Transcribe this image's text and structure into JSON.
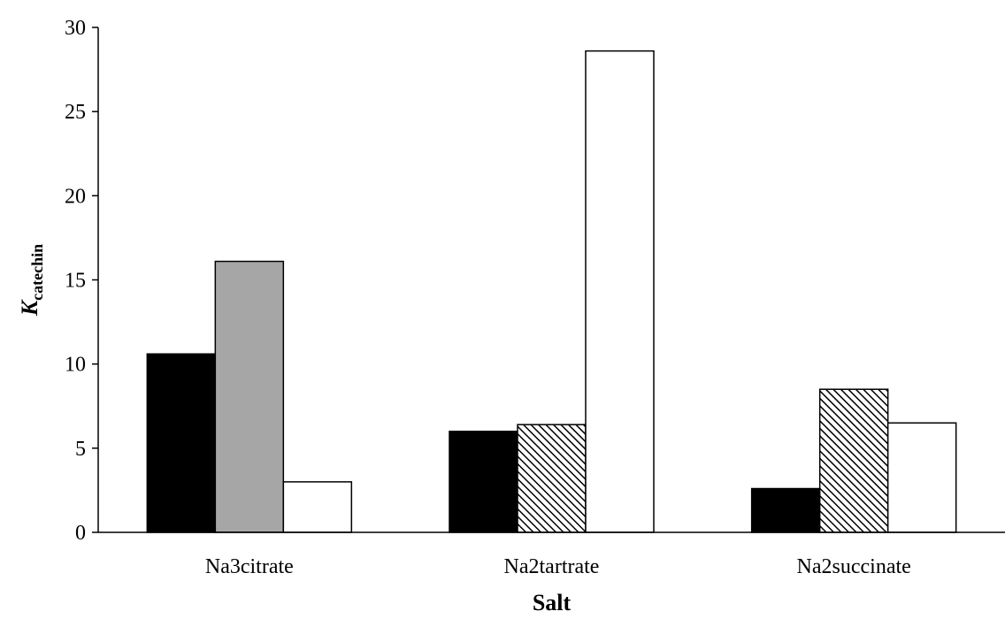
{
  "chart_data": {
    "type": "bar",
    "xlabel": "Salt",
    "ylabel_main": "K",
    "ylabel_sub": "catechin",
    "ylim": [
      0,
      30
    ],
    "yticks": [
      "0",
      "5",
      "10",
      "15",
      "20",
      "25",
      "30"
    ],
    "grid": false,
    "categories": [
      "Na3citrate",
      "Na2tartrate",
      "Na2succinate"
    ],
    "bars": [
      [
        {
          "value": 10.6,
          "fill": "solid-black"
        },
        {
          "value": 16.1,
          "fill": "solid-gray"
        },
        {
          "value": 3.0,
          "fill": "white"
        }
      ],
      [
        {
          "value": 6.0,
          "fill": "solid-black"
        },
        {
          "value": 6.4,
          "fill": "hatched"
        },
        {
          "value": 28.6,
          "fill": "white"
        }
      ],
      [
        {
          "value": 2.6,
          "fill": "solid-black"
        },
        {
          "value": 8.5,
          "fill": "hatched"
        },
        {
          "value": 6.5,
          "fill": "white"
        }
      ]
    ],
    "colors": {
      "solid-black": "#000000",
      "solid-gray": "#a6a6a6",
      "white": "#ffffff",
      "hatch-line": "#000000",
      "axis": "#000000"
    }
  }
}
